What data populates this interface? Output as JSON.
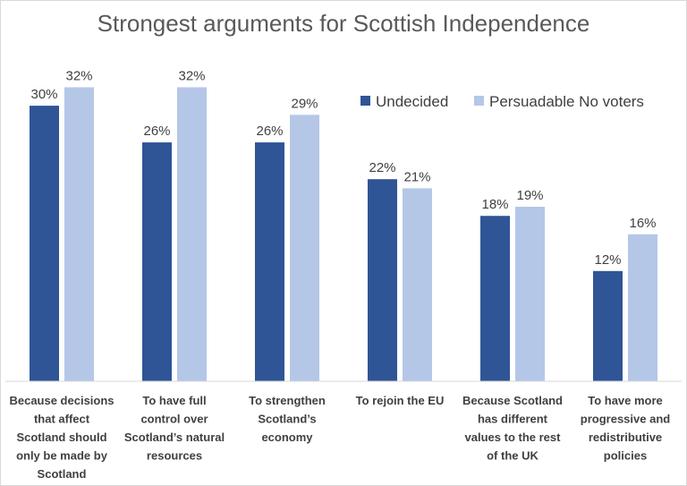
{
  "chart_data": {
    "type": "bar",
    "title": "Strongest arguments for Scottish Independence",
    "categories": [
      [
        "Because decisions",
        "that affect",
        "Scotland should",
        "only be made by",
        "Scotland"
      ],
      [
        "To have full",
        "control over",
        "Scotland’s natural",
        "resources"
      ],
      [
        "To strengthen",
        "Scotland’s",
        "economy"
      ],
      [
        "To rejoin the EU"
      ],
      [
        "Because Scotland",
        "has different",
        "values to the rest",
        "of the UK"
      ],
      [
        "To have more",
        "progressive and",
        "redistributive",
        "policies"
      ]
    ],
    "series": [
      {
        "name": "Undecided",
        "color": "#2f5597",
        "values": [
          30,
          26,
          26,
          22,
          18,
          12
        ],
        "labels": [
          "30%",
          "26%",
          "26%",
          "22%",
          "18%",
          "12%"
        ]
      },
      {
        "name": "Persuadable No voters",
        "color": "#b4c7e7",
        "values": [
          32,
          32,
          29,
          21,
          19,
          16
        ],
        "labels": [
          "32%",
          "32%",
          "29%",
          "21%",
          "19%",
          "16%"
        ]
      }
    ],
    "ylim": [
      0,
      34
    ],
    "grid": false,
    "legend": "top-right",
    "xlabel": "",
    "ylabel": ""
  }
}
